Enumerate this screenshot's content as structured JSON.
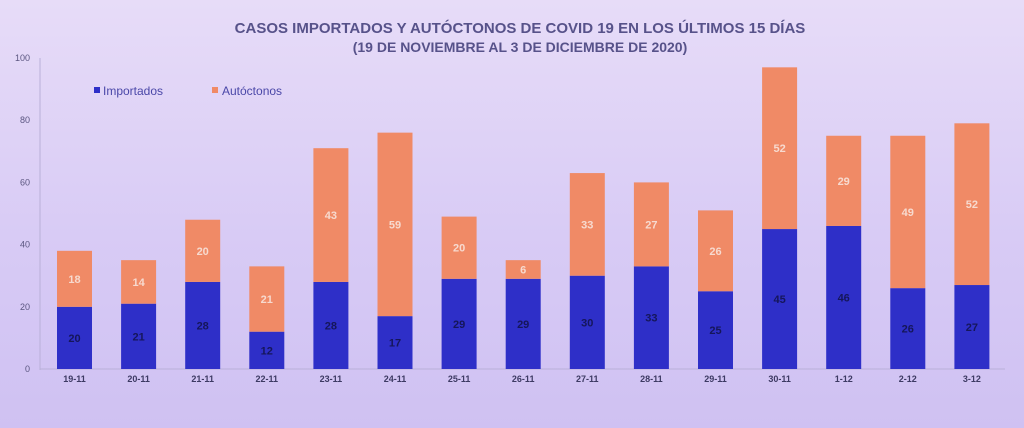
{
  "chart_data": {
    "type": "bar",
    "stacked": true,
    "title": "CASOS IMPORTADOS Y AUTÓCTONOS DE COVID 19 EN LOS ÚLTIMOS 15 DÍAS",
    "subtitle": "(19 DE NOVIEMBRE AL 3 DE DICIEMBRE DE 2020)",
    "categories": [
      "19-11",
      "20-11",
      "21-11",
      "22-11",
      "23-11",
      "24-11",
      "25-11",
      "26-11",
      "27-11",
      "28-11",
      "29-11",
      "30-11",
      "1-12",
      "2-12",
      "3-12"
    ],
    "series": [
      {
        "name": "Importados",
        "color": "#2e2fc8",
        "values": [
          20,
          21,
          28,
          12,
          28,
          17,
          29,
          29,
          30,
          33,
          25,
          45,
          46,
          26,
          27
        ]
      },
      {
        "name": "Autóctonos",
        "color": "#f08a66",
        "values": [
          18,
          14,
          20,
          21,
          43,
          59,
          20,
          6,
          33,
          27,
          26,
          52,
          29,
          49,
          52
        ]
      }
    ],
    "data_labels": {
      "Importados": [
        "20",
        "21",
        "28",
        "12",
        "28",
        "17",
        "29",
        "29",
        "30",
        "33",
        "25",
        "45",
        "46",
        "26",
        "27"
      ],
      "Autóctonos": [
        "18",
        "14",
        "20",
        "21",
        "43",
        "59",
        "20",
        "6",
        "33",
        "27",
        "26",
        "52",
        "29",
        "49",
        "52"
      ]
    },
    "yticks": [
      "0",
      "20",
      "40",
      "60",
      "80",
      "100"
    ],
    "ylim": [
      0,
      100
    ],
    "grid": false,
    "legend": "top-left"
  }
}
